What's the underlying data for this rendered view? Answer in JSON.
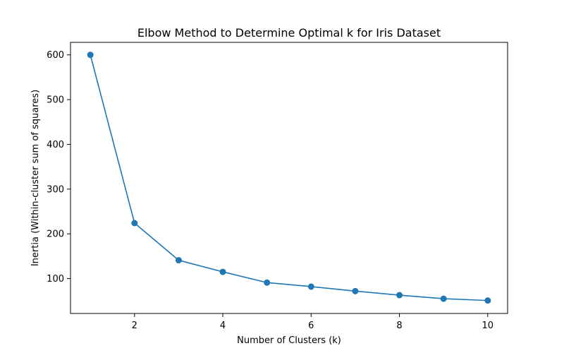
{
  "chart_data": {
    "type": "line",
    "title": "Elbow Method to Determine Optimal k for Iris Dataset",
    "xlabel": "Number of Clusters (k)",
    "ylabel": "Inertia (Within-cluster sum of squares)",
    "x": [
      1,
      2,
      3,
      4,
      5,
      6,
      7,
      8,
      9,
      10
    ],
    "series": [
      {
        "values": [
          600,
          224,
          141,
          115,
          91,
          82,
          72,
          63,
          55,
          51
        ],
        "color": "#1f77b4",
        "marker": "circle"
      }
    ],
    "xticks": [
      2,
      4,
      6,
      8,
      10
    ],
    "yticks": [
      100,
      200,
      300,
      400,
      500,
      600
    ],
    "xlim": [
      0.55,
      10.45
    ],
    "ylim": [
      22,
      628
    ],
    "grid": false,
    "legend": "none"
  }
}
